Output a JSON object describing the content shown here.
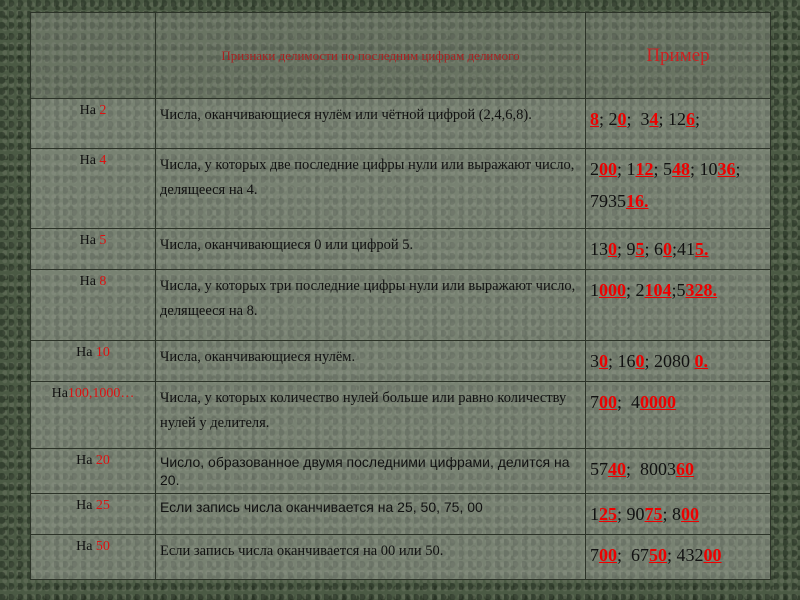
{
  "table": {
    "header": {
      "criteria": "Признаки делимости по последним цифрам делимого",
      "example": "Пример"
    },
    "rows": [
      {
        "divisor": {
          "prefix": "На ",
          "number": "2"
        },
        "description": "Числа, оканчивающиеся нулём или  чётной цифрой (2,4,6,8).",
        "example": [
          {
            "text": "8",
            "highlight": true
          },
          {
            "text": "; 2",
            "highlight": false
          },
          {
            "text": "0",
            "highlight": true
          },
          {
            "text": ";  3",
            "highlight": false
          },
          {
            "text": "4",
            "highlight": true
          },
          {
            "text": "; 12",
            "highlight": false
          },
          {
            "text": "6",
            "highlight": true
          },
          {
            "text": ";",
            "highlight": false
          }
        ]
      },
      {
        "divisor": {
          "prefix": "На ",
          "number": "4"
        },
        "description": "Числа, у которых две последние цифры нули или выражают число, делящееся на 4.",
        "example": [
          {
            "text": "2",
            "highlight": false
          },
          {
            "text": "00",
            "highlight": true
          },
          {
            "text": "; 1",
            "highlight": false
          },
          {
            "text": "12",
            "highlight": true
          },
          {
            "text": "; 5",
            "highlight": false
          },
          {
            "text": "48",
            "highlight": true
          },
          {
            "text": "; 10",
            "highlight": false
          },
          {
            "text": "36",
            "highlight": true
          },
          {
            "text": "; 7935",
            "highlight": false
          },
          {
            "text": "16.",
            "highlight": true
          }
        ]
      },
      {
        "divisor": {
          "prefix": "На ",
          "number": "5"
        },
        "description": "Числа, оканчивающиеся 0 или цифрой 5.",
        "example": [
          {
            "text": "13",
            "highlight": false
          },
          {
            "text": "0",
            "highlight": true
          },
          {
            "text": "; 9",
            "highlight": false
          },
          {
            "text": "5",
            "highlight": true
          },
          {
            "text": "; 6",
            "highlight": false
          },
          {
            "text": "0",
            "highlight": true
          },
          {
            "text": ";41",
            "highlight": false
          },
          {
            "text": "5.",
            "highlight": true
          }
        ]
      },
      {
        "divisor": {
          "prefix": "На ",
          "number": "8"
        },
        "description": "Числа, у которых три последние цифры нули или выражают число, делящееся на 8.",
        "example": [
          {
            "text": "1",
            "highlight": false
          },
          {
            "text": "000",
            "highlight": true
          },
          {
            "text": "; 2",
            "highlight": false
          },
          {
            "text": "104",
            "highlight": true
          },
          {
            "text": ";5",
            "highlight": false
          },
          {
            "text": "328.",
            "highlight": true
          }
        ]
      },
      {
        "divisor": {
          "prefix": "На ",
          "number": "10"
        },
        "description": "Числа, оканчивающиеся нулём.",
        "example": [
          {
            "text": "3",
            "highlight": false
          },
          {
            "text": "0",
            "highlight": true
          },
          {
            "text": "; 16",
            "highlight": false
          },
          {
            "text": "0",
            "highlight": true
          },
          {
            "text": "; 2080 ",
            "highlight": false
          },
          {
            "text": "0.",
            "highlight": true
          }
        ]
      },
      {
        "divisor": {
          "prefix": "На",
          "number": "100,1000…"
        },
        "description": "Числа, у которых количество нулей больше или равно количеству нулей  у делителя.",
        "example": [
          {
            "text": "7",
            "highlight": false
          },
          {
            "text": "00",
            "highlight": true
          },
          {
            "text": ";  4",
            "highlight": false
          },
          {
            "text": "0000",
            "highlight": true
          }
        ]
      },
      {
        "divisor": {
          "prefix": "На ",
          "number": "20"
        },
        "description": "Число, образованное двумя последними цифрами, делится на 20.",
        "example": [
          {
            "text": "57",
            "highlight": false
          },
          {
            "text": "40",
            "highlight": true
          },
          {
            "text": ";  8003",
            "highlight": false
          },
          {
            "text": "60",
            "highlight": true
          }
        ]
      },
      {
        "divisor": {
          "prefix": "На ",
          "number": "25"
        },
        "description": "Если запись числа оканчивается на 25, 50, 75, 00",
        "example": [
          {
            "text": "1",
            "highlight": false
          },
          {
            "text": "25",
            "highlight": true
          },
          {
            "text": "; 90",
            "highlight": false
          },
          {
            "text": "75",
            "highlight": true
          },
          {
            "text": "; 8",
            "highlight": false
          },
          {
            "text": "00",
            "highlight": true
          }
        ]
      },
      {
        "divisor": {
          "prefix": "На ",
          "number": "50"
        },
        "description": "Если запись числа оканчивается на 00 или 50.",
        "example": [
          {
            "text": "7",
            "highlight": false
          },
          {
            "text": "00",
            "highlight": true
          },
          {
            "text": ";  67",
            "highlight": false
          },
          {
            "text": "50",
            "highlight": true
          },
          {
            "text": "; 432",
            "highlight": false
          },
          {
            "text": "00",
            "highlight": true
          }
        ]
      }
    ]
  }
}
